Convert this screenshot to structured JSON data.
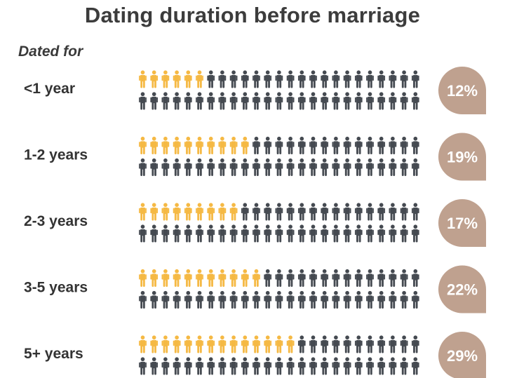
{
  "chart_data": {
    "type": "pictograph",
    "title": "Dating duration before marriage",
    "legend_heading": "Dated for",
    "icons_per_row": 100,
    "categories": [
      "<1 year",
      "1-2 years",
      "2-3 years",
      "3-5 years",
      "5+ years"
    ],
    "values": [
      12,
      19,
      17,
      22,
      29
    ],
    "value_labels": [
      "12%",
      "19%",
      "17%",
      "22%",
      "29%"
    ],
    "unit": "%"
  },
  "colors": {
    "highlight": "#f5b944",
    "base": "#454a51",
    "badge": "#bfa18f",
    "text": "#333333"
  },
  "icons": {
    "person": "person-icon"
  }
}
